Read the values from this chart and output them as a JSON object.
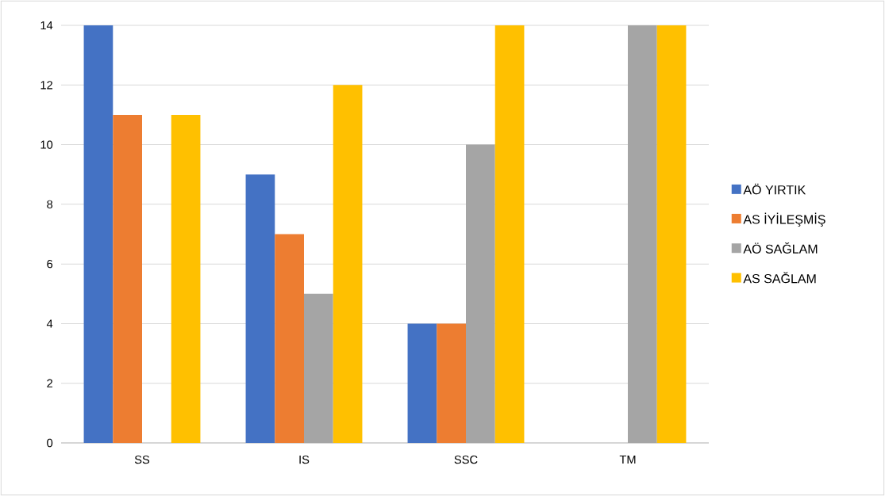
{
  "chart_data": {
    "type": "bar",
    "categories": [
      "SS",
      "IS",
      "SSC",
      "TM"
    ],
    "series": [
      {
        "name": "AÖ YIRTIK",
        "color": "#4472c4",
        "values": [
          14,
          9,
          4,
          0
        ]
      },
      {
        "name": "AS İYİLEŞMİŞ",
        "color": "#ed7d31",
        "values": [
          11,
          7,
          4,
          0
        ]
      },
      {
        "name": "AÖ SAĞLAM",
        "color": "#a5a5a5",
        "values": [
          0,
          5,
          10,
          14
        ]
      },
      {
        "name": "AS SAĞLAM",
        "color": "#ffc000",
        "values": [
          11,
          12,
          14,
          14
        ]
      }
    ],
    "ylim": [
      0,
      14
    ],
    "yticks": [
      0,
      2,
      4,
      6,
      8,
      10,
      12,
      14
    ],
    "grid": "y",
    "legend": "right"
  }
}
